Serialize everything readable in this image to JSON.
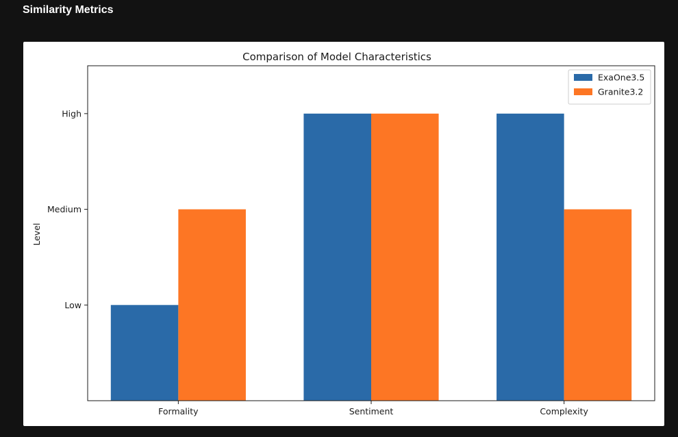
{
  "section": {
    "title": "Similarity Metrics"
  },
  "chart_data": {
    "type": "bar",
    "title": "Comparison of Model Characteristics",
    "xlabel": "",
    "ylabel": "Level",
    "categories": [
      "Formality",
      "Sentiment",
      "Complexity"
    ],
    "y_ticks": [
      {
        "value": 1,
        "label": "Low"
      },
      {
        "value": 2,
        "label": "Medium"
      },
      {
        "value": 3,
        "label": "High"
      }
    ],
    "ylim": [
      0,
      3.5
    ],
    "series": [
      {
        "name": "ExaOne3.5",
        "color": "#2a6aa8",
        "values": [
          1,
          3,
          3
        ]
      },
      {
        "name": "Granite3.2",
        "color": "#fd7624",
        "values": [
          2,
          3,
          2
        ]
      }
    ],
    "legend": "top-right",
    "grid": false
  }
}
